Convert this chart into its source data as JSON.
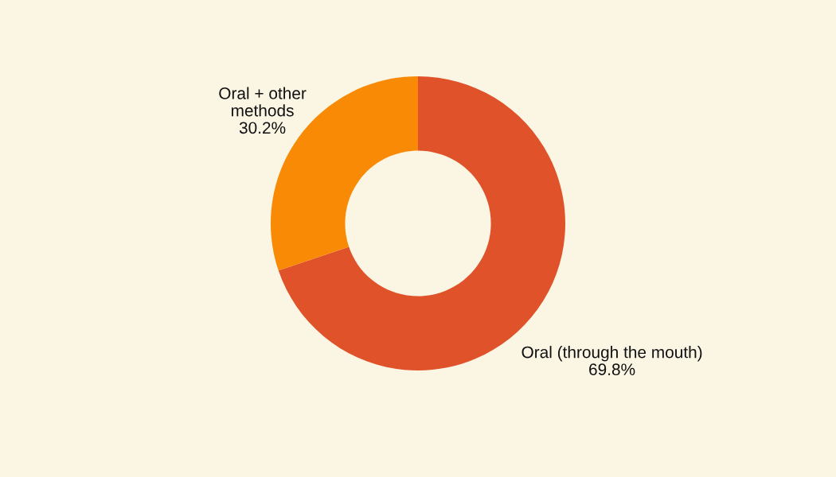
{
  "chart_data": {
    "type": "donut",
    "categories": [
      "Oral (through the mouth)",
      "Oral + other\nmethods"
    ],
    "values": [
      69.8,
      30.2
    ],
    "colors": [
      "#e0522a",
      "#f98a05"
    ],
    "value_labels": [
      "69.8%",
      "30.2%"
    ]
  }
}
